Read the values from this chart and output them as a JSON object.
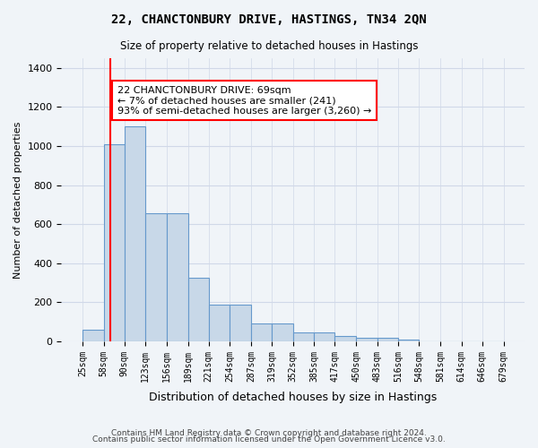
{
  "title1": "22, CHANCTONBURY DRIVE, HASTINGS, TN34 2QN",
  "title2": "Size of property relative to detached houses in Hastings",
  "xlabel": "Distribution of detached houses by size in Hastings",
  "ylabel": "Number of detached properties",
  "bin_labels": [
    "25sqm",
    "58sqm",
    "90sqm",
    "123sqm",
    "156sqm",
    "189sqm",
    "221sqm",
    "254sqm",
    "287sqm",
    "319sqm",
    "352sqm",
    "385sqm",
    "417sqm",
    "450sqm",
    "483sqm",
    "516sqm",
    "548sqm",
    "581sqm",
    "614sqm",
    "646sqm",
    "679sqm"
  ],
  "bin_edges": [
    25,
    58,
    90,
    123,
    156,
    189,
    221,
    254,
    287,
    319,
    352,
    385,
    417,
    450,
    483,
    516,
    548,
    581,
    614,
    646,
    679
  ],
  "bar_heights": [
    60,
    1010,
    1100,
    655,
    655,
    325,
    190,
    190,
    90,
    90,
    45,
    45,
    25,
    20,
    20,
    10,
    0,
    0,
    0,
    0
  ],
  "bar_color": "#c8d8e8",
  "bar_edge_color": "#6699cc",
  "grid_color": "#d0d8e8",
  "bg_color": "#f0f4f8",
  "red_line_x": 69,
  "annotation_text": "22 CHANCTONBURY DRIVE: 69sqm\n← 7% of detached houses are smaller (241)\n93% of semi-detached houses are larger (3,260) →",
  "annotation_box_color": "white",
  "annotation_box_edge_color": "red",
  "ylim": [
    0,
    1450
  ],
  "yticks": [
    0,
    200,
    400,
    600,
    800,
    1000,
    1200,
    1400
  ],
  "footer1": "Contains HM Land Registry data © Crown copyright and database right 2024.",
  "footer2": "Contains public sector information licensed under the Open Government Licence v3.0."
}
